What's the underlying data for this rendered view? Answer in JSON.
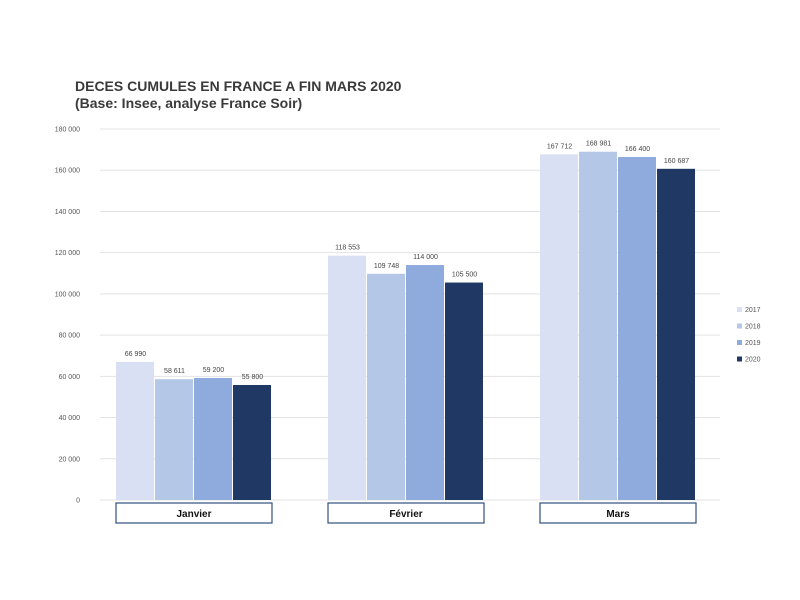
{
  "chart_data": {
    "type": "bar",
    "title": "DECES CUMULES EN FRANCE A FIN MARS 2020",
    "subtitle": "(Base: Insee, analyse France Soir)",
    "xlabel": "",
    "ylabel": "",
    "ylim": [
      0,
      180000
    ],
    "yticks": [
      0,
      20000,
      40000,
      60000,
      80000,
      100000,
      120000,
      140000,
      160000,
      180000
    ],
    "ytick_labels": [
      "0",
      "20 000",
      "40 000",
      "60 000",
      "80 000",
      "100 000",
      "120 000",
      "140 000",
      "160 000",
      "180 000"
    ],
    "grid": true,
    "legend_position": "right",
    "categories": [
      "Janvier",
      "Février",
      "Mars"
    ],
    "series": [
      {
        "name": "2017",
        "color": "#dae0f3",
        "values": [
          66990,
          118553,
          167712
        ],
        "labels": [
          "66 990",
          "118 553",
          "167 712"
        ]
      },
      {
        "name": "2018",
        "color": "#b4c7e7",
        "values": [
          58611,
          109748,
          168981
        ],
        "labels": [
          "58 611",
          "109 748",
          "168 981"
        ]
      },
      {
        "name": "2019",
        "color": "#8faadc",
        "values": [
          59200,
          114000,
          166400
        ],
        "labels": [
          "59 200",
          "114 000",
          "166 400"
        ]
      },
      {
        "name": "2020",
        "color": "#1f3864",
        "values": [
          55800,
          105500,
          160687
        ],
        "labels": [
          "55 800",
          "105 500",
          "160 687"
        ]
      }
    ]
  }
}
